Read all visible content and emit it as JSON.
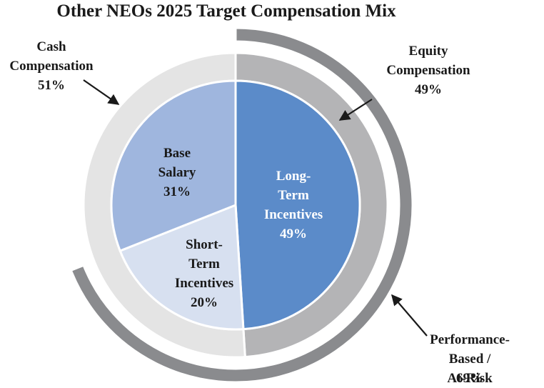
{
  "chart_data": [
    {
      "type": "pie",
      "title": "Other NEOs 2025 Target Compensation Mix",
      "categories": [
        "Long-\nTerm\nIncentives",
        "Short-\nTerm\nIncentives",
        "Base\nSalary"
      ],
      "values": [
        49,
        20,
        31
      ],
      "value_labels": [
        "49%",
        "20%",
        "31%"
      ],
      "colors": [
        "#5b8bc9",
        "#d7e0f0",
        "#9fb6de"
      ],
      "label_colors": [
        "#ffffff",
        "#1a1a1a",
        "#1a1a1a"
      ]
    },
    {
      "type": "donut",
      "categories": [
        "Equity\nCompensation",
        "Cash\nCompensation"
      ],
      "values": [
        49,
        51
      ],
      "value_labels": [
        "49%",
        "51%"
      ],
      "colors": [
        "#b4b4b6",
        "#e4e4e4"
      ]
    },
    {
      "type": "arc",
      "categories": [
        "Performance-Based /\nAt-Risk"
      ],
      "values": [
        69
      ],
      "value_labels": [
        "69%"
      ],
      "colors": [
        "#8a8b8e"
      ]
    }
  ]
}
